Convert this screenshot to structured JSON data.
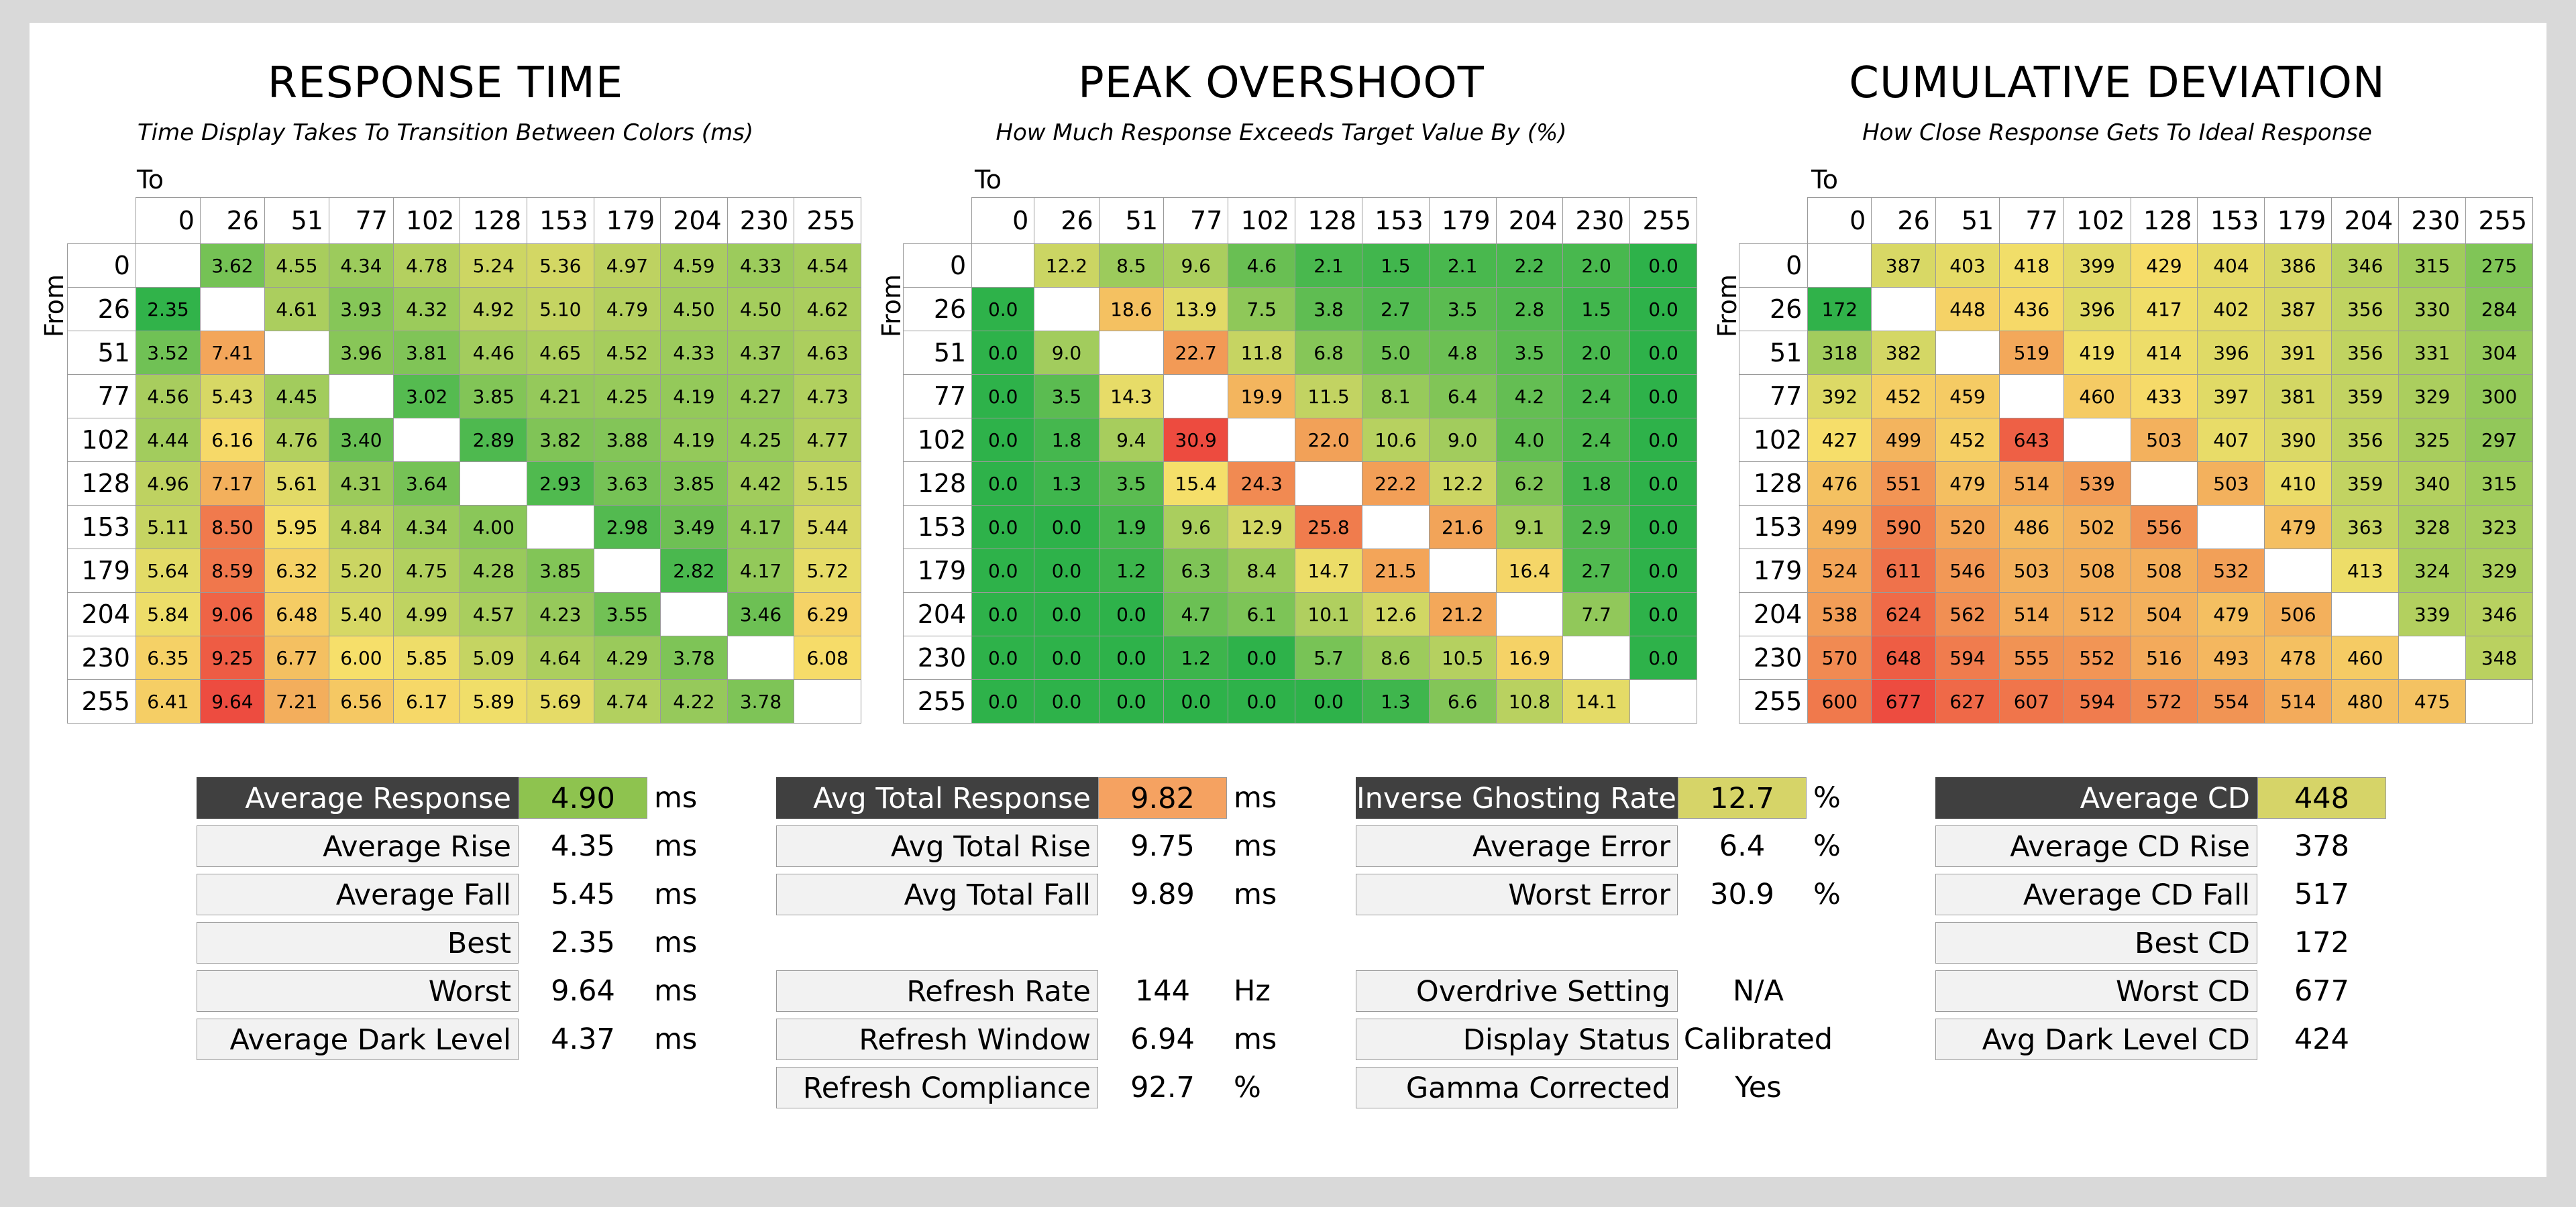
{
  "chart_data": [
    {
      "type": "heatmap",
      "title": "RESPONSE TIME",
      "subtitle": "Time Display Takes To Transition Between Colors (ms)",
      "xlabel": "To",
      "ylabel": "From",
      "x": [
        "0",
        "26",
        "51",
        "77",
        "102",
        "128",
        "153",
        "179",
        "204",
        "230",
        "255"
      ],
      "y": [
        "0",
        "26",
        "51",
        "77",
        "102",
        "128",
        "153",
        "179",
        "204",
        "230",
        "255"
      ],
      "values": [
        [
          null,
          "3.62",
          "4.55",
          "4.34",
          "4.78",
          "5.24",
          "5.36",
          "4.97",
          "4.59",
          "4.33",
          "4.54"
        ],
        [
          "2.35",
          null,
          "4.61",
          "3.93",
          "4.32",
          "4.92",
          "5.10",
          "4.79",
          "4.50",
          "4.50",
          "4.62"
        ],
        [
          "3.52",
          "7.41",
          null,
          "3.96",
          "3.81",
          "4.46",
          "4.65",
          "4.52",
          "4.33",
          "4.37",
          "4.63"
        ],
        [
          "4.56",
          "5.43",
          "4.45",
          null,
          "3.02",
          "3.85",
          "4.21",
          "4.25",
          "4.19",
          "4.27",
          "4.73"
        ],
        [
          "4.44",
          "6.16",
          "4.76",
          "3.40",
          null,
          "2.89",
          "3.82",
          "3.88",
          "4.19",
          "4.25",
          "4.77"
        ],
        [
          "4.96",
          "7.17",
          "5.61",
          "4.31",
          "3.64",
          null,
          "2.93",
          "3.63",
          "3.85",
          "4.42",
          "5.15"
        ],
        [
          "5.11",
          "8.50",
          "5.95",
          "4.84",
          "4.34",
          "4.00",
          null,
          "2.98",
          "3.49",
          "4.17",
          "5.44"
        ],
        [
          "5.64",
          "8.59",
          "6.32",
          "5.20",
          "4.75",
          "4.28",
          "3.85",
          null,
          "2.82",
          "4.17",
          "5.72"
        ],
        [
          "5.84",
          "9.06",
          "6.48",
          "5.40",
          "4.99",
          "4.57",
          "4.23",
          "3.55",
          null,
          "3.46",
          "6.29"
        ],
        [
          "6.35",
          "9.25",
          "6.77",
          "6.00",
          "5.85",
          "5.09",
          "4.64",
          "4.29",
          "3.78",
          null,
          "6.08"
        ],
        [
          "6.41",
          "9.64",
          "7.21",
          "6.56",
          "6.17",
          "5.89",
          "5.69",
          "4.74",
          "4.22",
          "3.78",
          null
        ]
      ],
      "color_range": [
        2.3,
        9.7
      ]
    },
    {
      "type": "heatmap",
      "title": "PEAK OVERSHOOT",
      "subtitle": "How Much Response Exceeds Target Value By (%)",
      "xlabel": "To",
      "ylabel": "From",
      "x": [
        "0",
        "26",
        "51",
        "77",
        "102",
        "128",
        "153",
        "179",
        "204",
        "230",
        "255"
      ],
      "y": [
        "0",
        "26",
        "51",
        "77",
        "102",
        "128",
        "153",
        "179",
        "204",
        "230",
        "255"
      ],
      "values": [
        [
          null,
          "12.2",
          "8.5",
          "9.6",
          "4.6",
          "2.1",
          "1.5",
          "2.1",
          "2.2",
          "2.0",
          "0.0"
        ],
        [
          "0.0",
          null,
          "18.6",
          "13.9",
          "7.5",
          "3.8",
          "2.7",
          "3.5",
          "2.8",
          "1.5",
          "0.0"
        ],
        [
          "0.0",
          "9.0",
          null,
          "22.7",
          "11.8",
          "6.8",
          "5.0",
          "4.8",
          "3.5",
          "2.0",
          "0.0"
        ],
        [
          "0.0",
          "3.5",
          "14.3",
          null,
          "19.9",
          "11.5",
          "8.1",
          "6.4",
          "4.2",
          "2.4",
          "0.0"
        ],
        [
          "0.0",
          "1.8",
          "9.4",
          "30.9",
          null,
          "22.0",
          "10.6",
          "9.0",
          "4.0",
          "2.4",
          "0.0"
        ],
        [
          "0.0",
          "1.3",
          "3.5",
          "15.4",
          "24.3",
          null,
          "22.2",
          "12.2",
          "6.2",
          "1.8",
          "0.0"
        ],
        [
          "0.0",
          "0.0",
          "1.9",
          "9.6",
          "12.9",
          "25.8",
          null,
          "21.6",
          "9.1",
          "2.9",
          "0.0"
        ],
        [
          "0.0",
          "0.0",
          "1.2",
          "6.3",
          "8.4",
          "14.7",
          "21.5",
          null,
          "16.4",
          "2.7",
          "0.0"
        ],
        [
          "0.0",
          "0.0",
          "0.0",
          "4.7",
          "6.1",
          "10.1",
          "12.6",
          "21.2",
          null,
          "7.7",
          "0.0"
        ],
        [
          "0.0",
          "0.0",
          "0.0",
          "1.2",
          "0.0",
          "5.7",
          "8.6",
          "10.5",
          "16.9",
          null,
          "0.0"
        ],
        [
          "0.0",
          "0.0",
          "0.0",
          "0.0",
          "0.0",
          "0.0",
          "1.3",
          "6.6",
          "10.8",
          "14.1",
          null
        ]
      ],
      "color_range": [
        0,
        31
      ]
    },
    {
      "type": "heatmap",
      "title": "CUMULATIVE DEVIATION",
      "subtitle": "How Close Response Gets To Ideal Response",
      "xlabel": "To",
      "ylabel": "From",
      "x": [
        "0",
        "26",
        "51",
        "77",
        "102",
        "128",
        "153",
        "179",
        "204",
        "230",
        "255"
      ],
      "y": [
        "0",
        "26",
        "51",
        "77",
        "102",
        "128",
        "153",
        "179",
        "204",
        "230",
        "255"
      ],
      "values": [
        [
          null,
          "387",
          "403",
          "418",
          "399",
          "429",
          "404",
          "386",
          "346",
          "315",
          "275"
        ],
        [
          "172",
          null,
          "448",
          "436",
          "396",
          "417",
          "402",
          "387",
          "356",
          "330",
          "284"
        ],
        [
          "318",
          "382",
          null,
          "519",
          "419",
          "414",
          "396",
          "391",
          "356",
          "331",
          "304"
        ],
        [
          "392",
          "452",
          "459",
          null,
          "460",
          "433",
          "397",
          "381",
          "359",
          "329",
          "300"
        ],
        [
          "427",
          "499",
          "452",
          "643",
          null,
          "503",
          "407",
          "390",
          "356",
          "325",
          "297"
        ],
        [
          "476",
          "551",
          "479",
          "514",
          "539",
          null,
          "503",
          "410",
          "359",
          "340",
          "315"
        ],
        [
          "499",
          "590",
          "520",
          "486",
          "502",
          "556",
          null,
          "479",
          "363",
          "328",
          "323"
        ],
        [
          "524",
          "611",
          "546",
          "503",
          "508",
          "508",
          "532",
          null,
          "413",
          "324",
          "329"
        ],
        [
          "538",
          "624",
          "562",
          "514",
          "512",
          "504",
          "479",
          "506",
          null,
          "339",
          "346"
        ],
        [
          "570",
          "648",
          "594",
          "555",
          "552",
          "516",
          "493",
          "478",
          "460",
          null,
          "348"
        ],
        [
          "600",
          "677",
          "627",
          "607",
          "594",
          "572",
          "554",
          "514",
          "480",
          "475",
          null
        ]
      ],
      "color_range": [
        170,
        680
      ]
    }
  ],
  "summary": {
    "response": [
      {
        "label": "Average Response",
        "value": "4.90",
        "unit": "ms",
        "header": true,
        "color": "#8ec34f"
      },
      {
        "label": "Average Rise",
        "value": "4.35",
        "unit": "ms"
      },
      {
        "label": "Average Fall",
        "value": "5.45",
        "unit": "ms"
      },
      {
        "label": "Best",
        "value": "2.35",
        "unit": "ms"
      },
      {
        "label": "Worst",
        "value": "9.64",
        "unit": "ms"
      },
      {
        "label": "Average Dark Level",
        "value": "4.37",
        "unit": "ms"
      }
    ],
    "total": [
      {
        "label": "Avg Total Response",
        "value": "9.82",
        "unit": "ms",
        "header": true,
        "color": "#f5a261"
      },
      {
        "label": "Avg Total Rise",
        "value": "9.75",
        "unit": "ms"
      },
      {
        "label": "Avg Total Fall",
        "value": "9.89",
        "unit": "ms"
      }
    ],
    "refresh": [
      {
        "label": "Refresh Rate",
        "value": "144",
        "unit": "Hz"
      },
      {
        "label": "Refresh Window",
        "value": "6.94",
        "unit": "ms"
      },
      {
        "label": "Refresh Compliance",
        "value": "92.7",
        "unit": "%"
      }
    ],
    "ghosting": [
      {
        "label": "Inverse Ghosting Rate",
        "value": "12.7",
        "unit": "%",
        "header": true,
        "color": "#d6d468"
      },
      {
        "label": "Average Error",
        "value": "6.4",
        "unit": "%"
      },
      {
        "label": "Worst Error",
        "value": "30.9",
        "unit": "%"
      }
    ],
    "overdrive": [
      {
        "label": "Overdrive Setting",
        "value": "N/A",
        "unit": ""
      },
      {
        "label": "Display Status",
        "value": "Calibrated",
        "unit": ""
      },
      {
        "label": "Gamma Corrected",
        "value": "Yes",
        "unit": ""
      }
    ],
    "cd": [
      {
        "label": "Average CD",
        "value": "448",
        "unit": "",
        "header": true,
        "color": "#d6d468"
      },
      {
        "label": "Average CD Rise",
        "value": "378",
        "unit": ""
      },
      {
        "label": "Average CD Fall",
        "value": "517",
        "unit": ""
      },
      {
        "label": "Best CD",
        "value": "172",
        "unit": ""
      },
      {
        "label": "Worst CD",
        "value": "677",
        "unit": ""
      },
      {
        "label": "Avg Dark Level CD",
        "value": "424",
        "unit": ""
      }
    ]
  },
  "colors": {
    "good": "#2eb24a",
    "mid": "#f6df6a",
    "bad": "#ed4a3f",
    "header_bg": "#404040"
  }
}
